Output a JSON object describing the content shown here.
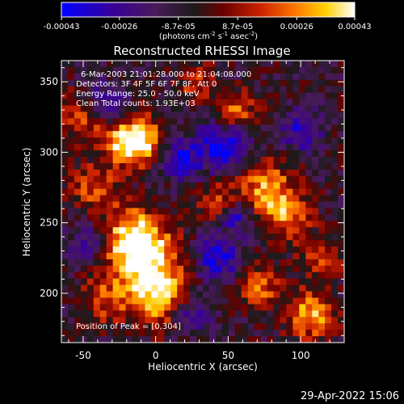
{
  "colorbar": {
    "tick_labels": [
      "-0.00043",
      "-0.00026",
      "-8.7e-05",
      "8.7e-05",
      "0.00026",
      "0.00043"
    ],
    "tick_values": [
      -0.00043,
      -0.00026,
      -8.7e-05,
      8.7e-05,
      0.00026,
      0.00043
    ],
    "range": [
      -0.00043,
      0.00043
    ],
    "units_main": "(photons cm",
    "units_exp1": "-2",
    "units_mid": " s",
    "units_exp2": "-1",
    "units_tail": " asec",
    "units_exp3": "-2",
    "units_close": ")",
    "colors": [
      "#0000ff",
      "#3a0096",
      "#4a1a5a",
      "#1b1b1b",
      "#6a0000",
      "#cc2200",
      "#ff7a00",
      "#ffd000",
      "#ffffff"
    ]
  },
  "plot": {
    "title": "Reconstructed RHESSI Image",
    "xlabel": "Heliocentric X (arcsec)",
    "ylabel": "Heliocentric Y (arcsec)",
    "x_range": [
      -65,
      130
    ],
    "y_range": [
      165,
      365
    ],
    "x_ticks": [
      -50,
      0,
      50,
      100
    ],
    "x_tick_labels": [
      "-50",
      "0",
      "50",
      "100"
    ],
    "y_ticks": [
      200,
      250,
      300,
      350
    ],
    "y_tick_labels": [
      "200",
      "250",
      "300",
      "350"
    ]
  },
  "annotations": {
    "time": "6-Mar-2003 21:01:28.000 to 21:04:08.000",
    "detectors": "Detectors: 3F 4F 5F 6F 7F 8F, Att 0",
    "energy": "Energy Range: 25.0 - 50.0 keV",
    "clean": "Clean     Total counts: 1.93E+03",
    "peak": "Position of Peak = [0,304]"
  },
  "footer": {
    "timestamp": "29-Apr-2022 15:06"
  }
}
